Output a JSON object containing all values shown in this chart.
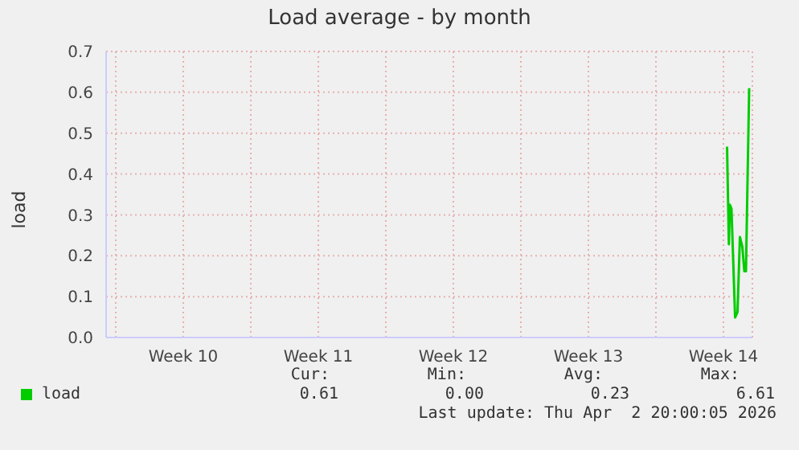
{
  "chart_data": {
    "type": "line",
    "title": "Load average - by month",
    "ylabel": "load",
    "x": [
      "2026-04-01T16:30",
      "2026-04-01T18:45",
      "2026-04-01T20:00",
      "2026-04-01T22:00",
      "2026-04-02T02:30",
      "2026-04-02T05:30",
      "2026-04-02T08:30",
      "2026-04-02T11:30",
      "2026-04-02T14:00",
      "2026-04-02T16:00",
      "2026-04-02T20:00"
    ],
    "series": [
      {
        "name": "load",
        "color": "#00cc00",
        "values": [
          0.467,
          0.228,
          0.325,
          0.315,
          0.049,
          0.062,
          0.246,
          0.222,
          0.162,
          0.162,
          0.61
        ]
      }
    ],
    "xlim": [
      "2026-02-28T12:00",
      "2026-04-03T00:00"
    ],
    "xticks": [
      {
        "value": "2026-03-01T00:00",
        "label": null
      },
      {
        "value": "2026-03-04T12:00",
        "label": "Week 10"
      },
      {
        "value": "2026-03-08T00:00",
        "label": null
      },
      {
        "value": "2026-03-11T12:00",
        "label": "Week 11"
      },
      {
        "value": "2026-03-15T00:00",
        "label": null
      },
      {
        "value": "2026-03-18T12:00",
        "label": "Week 12"
      },
      {
        "value": "2026-03-22T00:00",
        "label": null
      },
      {
        "value": "2026-03-25T12:00",
        "label": "Week 13"
      },
      {
        "value": "2026-03-29T00:00",
        "label": null
      },
      {
        "value": "2026-04-01T12:00",
        "label": "Week 14"
      }
    ],
    "ylim": [
      0,
      0.7
    ],
    "yticks": [
      {
        "value": 0,
        "label": "0.0"
      },
      {
        "value": 0.1,
        "label": "0.1"
      },
      {
        "value": 0.2,
        "label": "0.2"
      },
      {
        "value": 0.3,
        "label": "0.3"
      },
      {
        "value": 0.4,
        "label": "0.4"
      },
      {
        "value": 0.5,
        "label": "0.5"
      },
      {
        "value": 0.6,
        "label": "0.6"
      },
      {
        "value": 0.7,
        "label": "0.7"
      }
    ],
    "grid": true,
    "legend": "bottom left",
    "marker": "none",
    "line_style": "solid",
    "annotations": [
      "Cur:",
      "Min:",
      "Avg:",
      "Max:",
      "0.61",
      "0.00",
      "0.23",
      "6.61",
      "Last update: Thu Apr  2 20:00:05 2026"
    ]
  }
}
